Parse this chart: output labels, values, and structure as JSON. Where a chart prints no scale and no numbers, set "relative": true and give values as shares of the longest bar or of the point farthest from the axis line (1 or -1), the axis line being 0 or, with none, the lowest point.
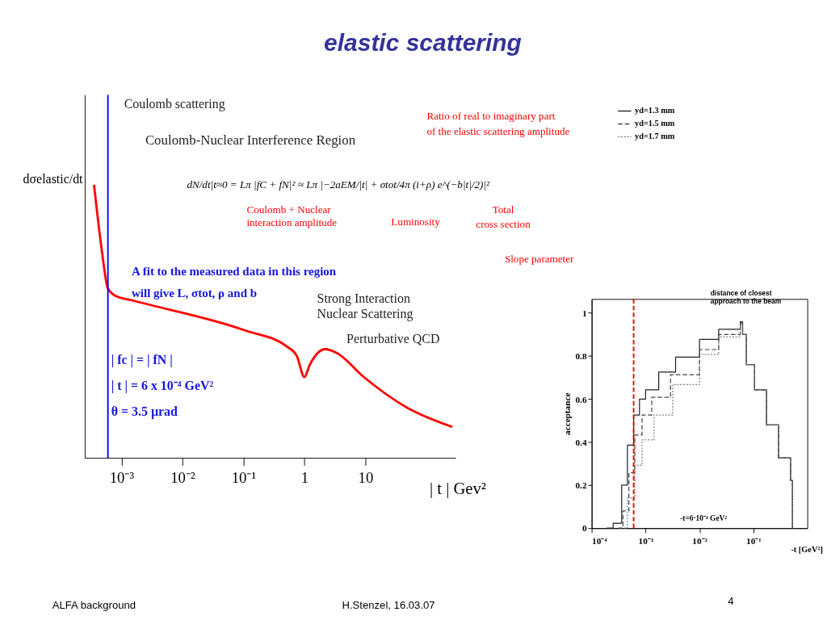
{
  "chart_data": [
    {
      "type": "line",
      "title": "elastic scattering",
      "ylabel": "dσelastic/dt",
      "xlabel": "| t |  Gev²",
      "relative": true,
      "log": "x",
      "xlim": [
        0.00025,
        300
      ],
      "xticks": [
        {
          "value": 0.001,
          "label": "10⁻³"
        },
        {
          "value": 0.01,
          "label": "10⁻²"
        },
        {
          "value": 0.1,
          "label": "10⁻¹"
        },
        1,
        10
      ],
      "grid": false,
      "legend": false,
      "series": [
        {
          "color": "#ff0000",
          "x": [
            0.000355,
            0.00047,
            0.0006,
            0.00079,
            0.0015,
            0.106,
            0.53,
            0.75,
            1,
            1.22,
            2.2,
            3.4,
            9.4,
            47,
            266
          ],
          "values": [
            1.0,
            0.77,
            0.62,
            0.594,
            0.577,
            0.467,
            0.406,
            0.373,
            0.296,
            0.34,
            0.398,
            0.384,
            0.296,
            0.185,
            0.113
          ]
        }
      ],
      "ref_lines": [
        {
          "axis": "x",
          "value": 0.0006,
          "color": "#0000ff",
          "line_style": "solid"
        }
      ],
      "annotations": [
        "Coulomb scattering",
        "Coulomb-Nuclear Interference Region",
        "dN/dt|t≈0 = Lπ |fC + fN|² ≈ Lπ |−2aEM/|t| + σtot/4π (i+ρ) e^(−b|t|/2)|²",
        "Coulomb + Nuclear\ninteraction amplitude",
        "Luminosity",
        "Total\ncross section",
        "Ratio of real to imaginary part\nof the elastic scattering amplitude",
        "Slope parameter",
        "A fit to the measured data in this region\nwill give L, σtot, ρ and b",
        "| fc | = | fN |\n| t | = 6 x 10⁻⁴ GeV²\n θ = 3.5 µrad",
        "Strong Interaction\nNuclear Scattering",
        "Perturbative QCD",
        "ALFA background",
        "H.Stenzel, 16.03.07",
        "4"
      ]
    },
    {
      "type": "step",
      "ylabel": "acceptance",
      "xlabel": "-t [GeV²]",
      "log": "x",
      "xlim": [
        0.0001,
        1
      ],
      "ylim": [
        0,
        1.065
      ],
      "xticks": [
        {
          "value": 0.0001,
          "label": "10⁻⁴"
        },
        {
          "value": 0.001,
          "label": "10⁻³"
        },
        {
          "value": 0.01,
          "label": "10⁻²"
        },
        {
          "value": 0.1,
          "label": "10⁻¹"
        }
      ],
      "yticks": [
        0,
        0.2,
        0.4,
        0.6,
        0.8,
        1
      ],
      "grid": false,
      "legend": "top left",
      "series": [
        {
          "name": "yd=1.3 mm",
          "color": "#222222",
          "line_style": "solid",
          "x": [
            0.00019,
            0.00025,
            0.00036,
            0.00046,
            0.0006,
            0.00077,
            0.001,
            0.00175,
            0.0036,
            0.01,
            0.0227,
            0.057,
            0.063,
            0.074,
            0.105,
            0.175,
            0.293,
            0.489,
            0.53
          ],
          "values": [
            0,
            0.023,
            0.2,
            0.386,
            0.526,
            0.6,
            0.643,
            0.725,
            0.795,
            0.877,
            0.924,
            0.959,
            0.9,
            0.76,
            0.643,
            0.48,
            0.327,
            0.222,
            0
          ]
        },
        {
          "name": "yd=1.5 mm",
          "color": "#444444",
          "line_style": "dashed",
          "x": [
            0.00031,
            0.00038,
            0.00049,
            0.00063,
            0.00086,
            0.0013,
            0.0029,
            0.01,
            0.0227,
            0.057,
            0.063,
            0.074,
            0.105,
            0.175,
            0.293,
            0.489,
            0.53
          ],
          "values": [
            0,
            0.08,
            0.257,
            0.433,
            0.526,
            0.608,
            0.713,
            0.83,
            0.9,
            0.953,
            0.9,
            0.76,
            0.643,
            0.48,
            0.327,
            0.222,
            0
          ]
        },
        {
          "name": "yd=1.7 mm",
          "color": "#777777",
          "line_style": "dotted",
          "x": [
            0.0004,
            0.00046,
            0.00063,
            0.00086,
            0.00143,
            0.0032,
            0.01,
            0.0227,
            0.057,
            0.063,
            0.074,
            0.105,
            0.175,
            0.293,
            0.489,
            0.53
          ],
          "values": [
            0,
            0.14,
            0.292,
            0.41,
            0.526,
            0.667,
            0.807,
            0.889,
            0.947,
            0.9,
            0.76,
            0.643,
            0.48,
            0.327,
            0.222,
            0
          ]
        }
      ],
      "ref_lines": [
        {
          "axis": "x",
          "value": 0.0006,
          "color": "#ff0000",
          "line_style": "dashed"
        }
      ],
      "annotations": [
        "distance of closest\napproach to the beam",
        "-t=6·10⁻⁴ GeV²"
      ]
    }
  ]
}
